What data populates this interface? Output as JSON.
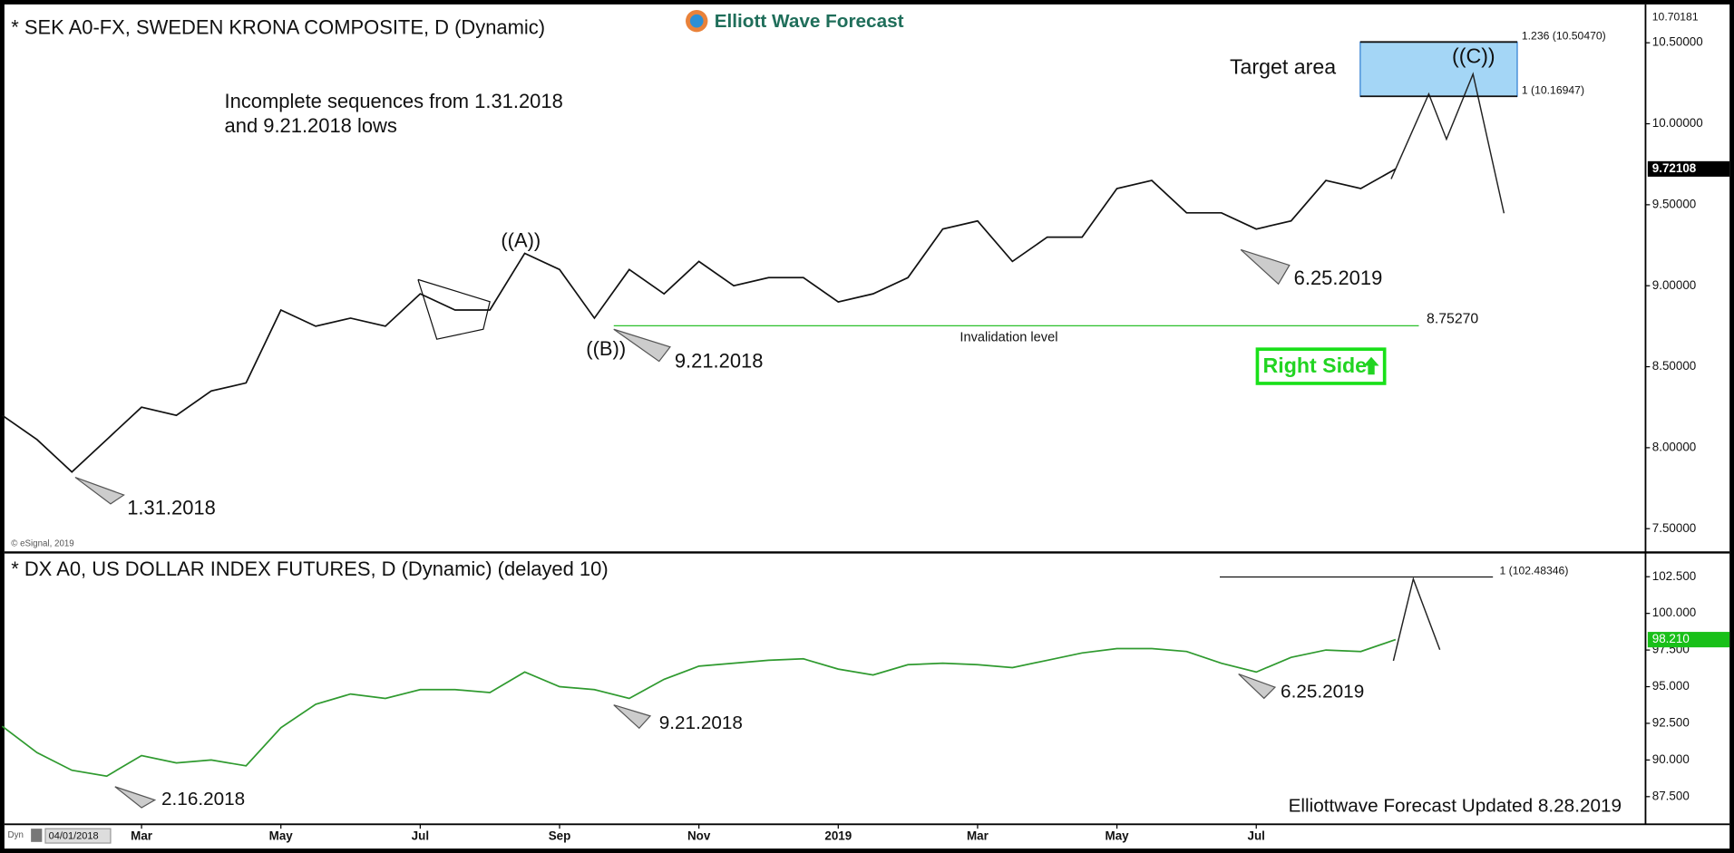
{
  "chart_data": [
    {
      "type": "line",
      "title": "* SEK A0-FX, SWEDEN KRONA COMPOSITE, D (Dynamic)",
      "color": "#111111",
      "values": [
        8.2,
        8.05,
        7.85,
        8.05,
        8.25,
        8.2,
        8.35,
        8.4,
        8.85,
        8.75,
        8.8,
        8.75,
        8.95,
        8.85,
        8.85,
        9.2,
        9.1,
        8.8,
        9.1,
        8.95,
        9.15,
        9.0,
        9.05,
        9.05,
        8.9,
        8.95,
        9.05,
        9.35,
        9.4,
        9.15,
        9.3,
        9.3,
        9.6,
        9.65,
        9.45,
        9.45,
        9.35,
        9.4,
        9.65,
        9.6,
        9.72108
      ],
      "ylim": [
        7.36,
        10.73
      ],
      "yticks": [
        {
          "value": 7.5,
          "label": "7.50000"
        },
        {
          "value": 8.0,
          "label": "8.00000"
        },
        {
          "value": 8.5,
          "label": "8.50000"
        },
        {
          "value": 9.0,
          "label": "9.00000"
        },
        {
          "value": 9.5,
          "label": "9.50000"
        },
        {
          "value": 10.0,
          "label": "10.00000"
        },
        {
          "value": 10.5,
          "label": "10.50000"
        }
      ],
      "axis_top_value": 10.70181,
      "last_price": 9.72108,
      "fib_levels": [
        {
          "value": 10.5047,
          "label": "1.236 (10.50470)"
        },
        {
          "value": 10.16947,
          "label": "1 (10.16947)"
        }
      ],
      "invalidation": {
        "value": 8.7527,
        "label": "8.75270",
        "text": "Invalidation level"
      },
      "annotations": {
        "note_1": "Incomplete sequences from 1.31.2018",
        "note_2": "and 9.21.2018 lows",
        "target": "Target area",
        "wave_c": "((C))",
        "wave_a": "((A))",
        "wave_b": "((B))",
        "low_1": "1.31.2018",
        "low_2": "9.21.2018",
        "low_3": "6.25.2019",
        "right_side": "Right Side",
        "source": "© eSignal, 2019"
      }
    },
    {
      "type": "line",
      "title": "* DX A0, US DOLLAR INDEX FUTURES, D (Dynamic) (delayed 10)",
      "color": "#2f9a2f",
      "categories": [
        null,
        null,
        null,
        null,
        "Mar",
        null,
        null,
        null,
        "May",
        null,
        null,
        null,
        "Jul",
        null,
        null,
        null,
        "Sep",
        null,
        null,
        null,
        "Nov",
        null,
        null,
        null,
        "2019",
        null,
        null,
        null,
        "Mar",
        null,
        null,
        null,
        "May",
        null,
        null,
        null,
        "Jul",
        null,
        null,
        null,
        null
      ],
      "values": [
        92.3,
        90.5,
        89.3,
        88.9,
        90.3,
        89.8,
        90.0,
        89.6,
        92.2,
        93.8,
        94.5,
        94.2,
        94.8,
        94.8,
        94.6,
        96.0,
        95.0,
        94.8,
        94.2,
        95.5,
        96.4,
        96.6,
        96.8,
        96.9,
        96.2,
        95.8,
        96.5,
        96.6,
        96.5,
        96.3,
        96.8,
        97.3,
        97.6,
        97.6,
        97.4,
        96.6,
        96.0,
        97.0,
        97.5,
        97.4,
        98.21
      ],
      "ylim": [
        85.69,
        104.08
      ],
      "yticks": [
        {
          "value": 87.5,
          "label": "87.500"
        },
        {
          "value": 90,
          "label": "90.000"
        },
        {
          "value": 92.5,
          "label": "92.500"
        },
        {
          "value": 95,
          "label": "95.000"
        },
        {
          "value": 97.5,
          "label": "97.500"
        },
        {
          "value": 100,
          "label": "100.000"
        },
        {
          "value": 102.5,
          "label": "102.500"
        }
      ],
      "last_price": {
        "value": 98.21,
        "label": "98.210"
      },
      "fib_levels": [
        {
          "value": 102.48346,
          "label": "1 (102.48346)"
        }
      ],
      "annotations": {
        "low_1": "2.16.2018",
        "low_2": "9.21.2018",
        "low_3": "6.25.2019"
      }
    }
  ],
  "logo": "Elliott Wave Forecast",
  "footer": "Elliottwave Forecast Updated 8.28.2019",
  "x_start": "04/01/2018",
  "mode": "Dyn"
}
